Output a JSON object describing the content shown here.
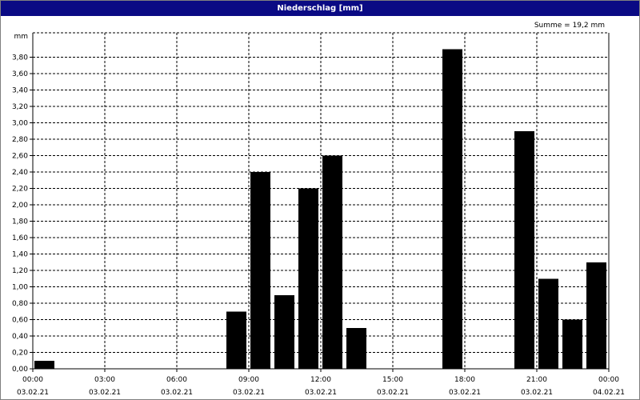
{
  "window": {
    "title": "Niederschlag [mm]"
  },
  "colors": {
    "titlebar": "#0a0a84",
    "bar": "#000000",
    "grid": "#000000"
  },
  "chart_data": {
    "type": "bar",
    "title": "Niederschlag [mm]",
    "ylabel": "mm",
    "summary": "Summe = 19,2 mm",
    "ylim": [
      0,
      4.1
    ],
    "y_ticks": [
      {
        "value": 0.0,
        "label": "0,00"
      },
      {
        "value": 0.2,
        "label": "0,20"
      },
      {
        "value": 0.4,
        "label": "0,40"
      },
      {
        "value": 0.6,
        "label": "0,60"
      },
      {
        "value": 0.8,
        "label": "0,80"
      },
      {
        "value": 1.0,
        "label": "1,00"
      },
      {
        "value": 1.2,
        "label": "1,20"
      },
      {
        "value": 1.4,
        "label": "1,40"
      },
      {
        "value": 1.6,
        "label": "1,60"
      },
      {
        "value": 1.8,
        "label": "1,80"
      },
      {
        "value": 2.0,
        "label": "2,00"
      },
      {
        "value": 2.2,
        "label": "2,20"
      },
      {
        "value": 2.4,
        "label": "2,40"
      },
      {
        "value": 2.6,
        "label": "2,60"
      },
      {
        "value": 2.8,
        "label": "2,80"
      },
      {
        "value": 3.0,
        "label": "3,00"
      },
      {
        "value": 3.2,
        "label": "3,20"
      },
      {
        "value": 3.4,
        "label": "3,40"
      },
      {
        "value": 3.6,
        "label": "3,60"
      },
      {
        "value": 3.8,
        "label": "3,80"
      }
    ],
    "x_range": [
      "03.02.21 00:00",
      "04.02.21 00:00"
    ],
    "x_ticks": [
      {
        "time": "00:00",
        "date": "03.02.21"
      },
      {
        "time": "03:00",
        "date": "03.02.21"
      },
      {
        "time": "06:00",
        "date": "03.02.21"
      },
      {
        "time": "09:00",
        "date": "03.02.21"
      },
      {
        "time": "12:00",
        "date": "03.02.21"
      },
      {
        "time": "15:00",
        "date": "03.02.21"
      },
      {
        "time": "18:00",
        "date": "03.02.21"
      },
      {
        "time": "21:00",
        "date": "03.02.21"
      },
      {
        "time": "00:00",
        "date": "04.02.21"
      }
    ],
    "bars": [
      {
        "start": "03.02.21 00:00",
        "value": 0.1
      },
      {
        "start": "03.02.21 08:00",
        "value": 0.7
      },
      {
        "start": "03.02.21 09:00",
        "value": 2.4
      },
      {
        "start": "03.02.21 10:00",
        "value": 0.9
      },
      {
        "start": "03.02.21 11:00",
        "value": 2.2
      },
      {
        "start": "03.02.21 12:00",
        "value": 2.6
      },
      {
        "start": "03.02.21 13:00",
        "value": 0.5
      },
      {
        "start": "03.02.21 17:00",
        "value": 3.9
      },
      {
        "start": "03.02.21 20:00",
        "value": 2.9
      },
      {
        "start": "03.02.21 21:00",
        "value": 1.1
      },
      {
        "start": "03.02.21 22:00",
        "value": 0.6
      },
      {
        "start": "03.02.21 23:00",
        "value": 1.3
      }
    ],
    "grid": true
  }
}
